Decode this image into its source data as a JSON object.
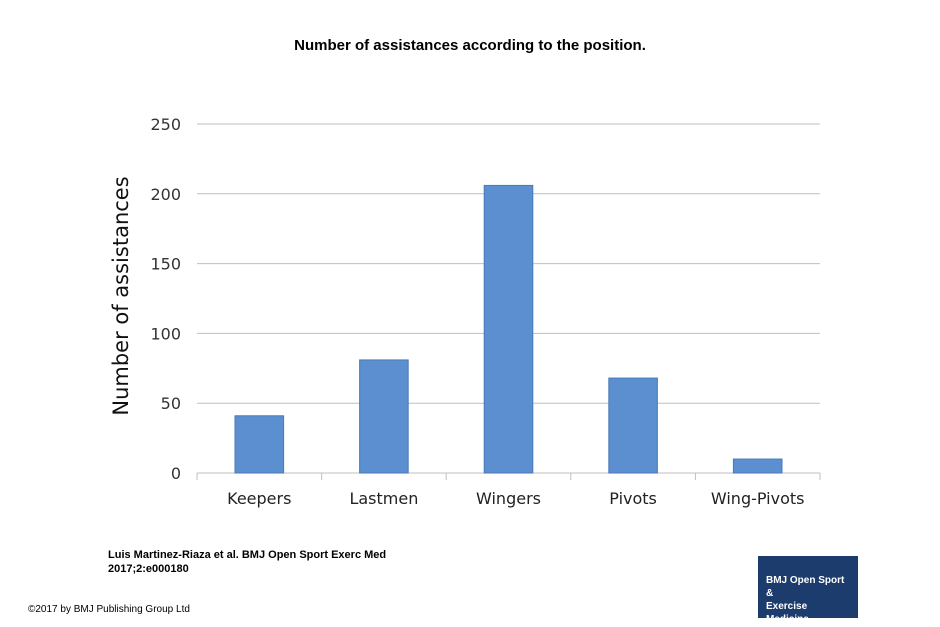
{
  "title": "Number of assistances according to the position.",
  "chart_data": {
    "type": "bar",
    "title": "",
    "xlabel": "",
    "ylabel": "Number of assistances",
    "categories": [
      "Keepers",
      "Lastmen",
      "Wingers",
      "Pivots",
      "Wing-Pivots"
    ],
    "values": [
      41,
      81,
      206,
      68,
      10
    ],
    "ylim": [
      0,
      250
    ],
    "yticks": [
      0,
      50,
      100,
      150,
      200,
      250
    ],
    "grid": true,
    "legend": "none",
    "bar_color": "#5b8fcf",
    "bar_stroke": "#4a7ab8",
    "grid_color": "#bfbfbf"
  },
  "citation": {
    "line1": "Luis Martinez-Riaza et al. BMJ Open Sport Exerc Med",
    "line2": "2017;2:e000180"
  },
  "copyright": "©2017 by BMJ Publishing Group Ltd",
  "logo": {
    "line1": "BMJ Open Sport &",
    "line2": "Exercise Medicine",
    "color": "#1d3c6e"
  }
}
